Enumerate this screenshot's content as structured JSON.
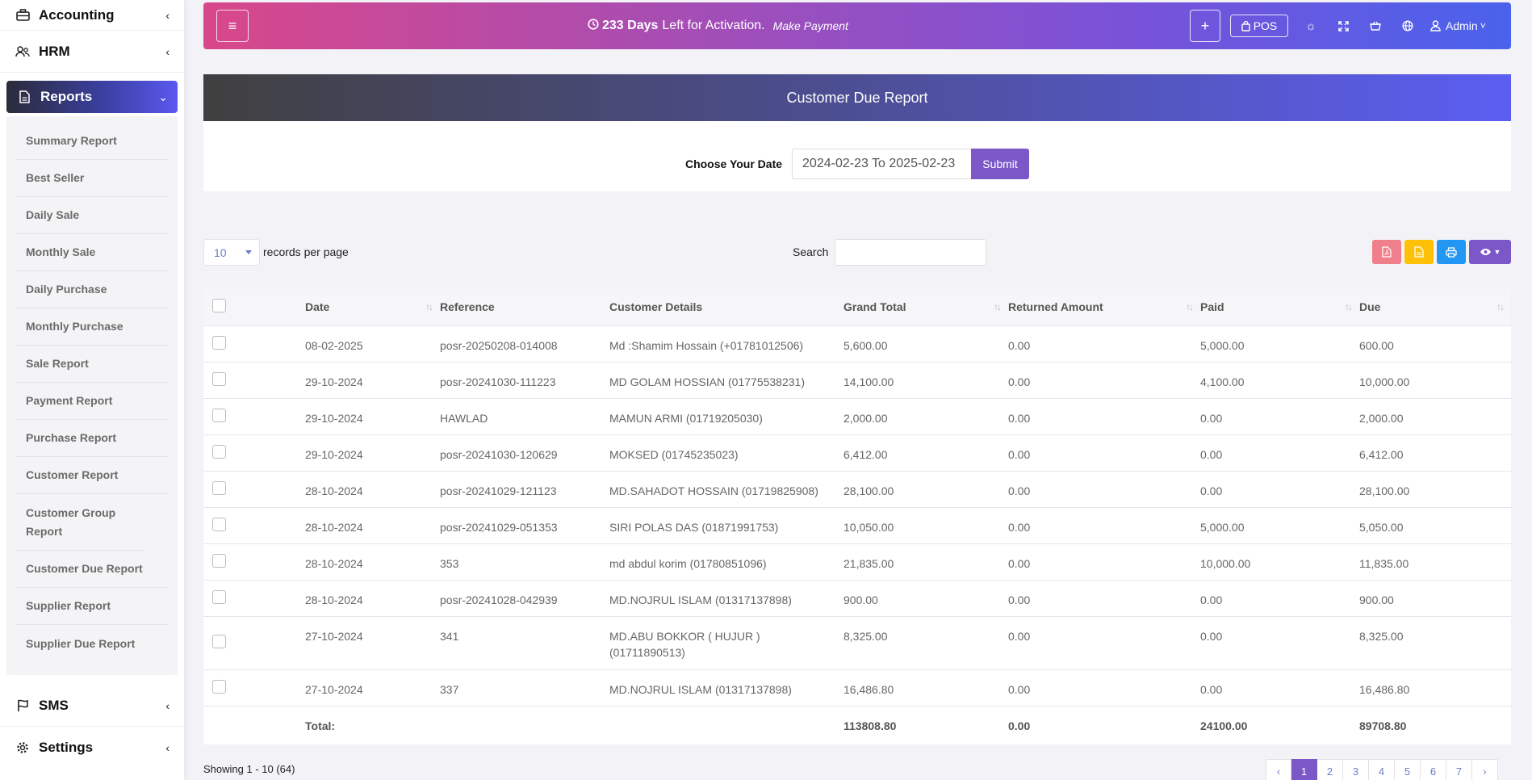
{
  "sidebar": {
    "accounting": "Accounting",
    "hrm": "HRM",
    "reports": "Reports",
    "sms": "SMS",
    "settings": "Settings",
    "report_items": [
      "Summary Report",
      "Best Seller",
      "Daily Sale",
      "Monthly Sale",
      "Daily Purchase",
      "Monthly Purchase",
      "Sale Report",
      "Payment Report",
      "Purchase Report",
      "Customer Report",
      "Customer Group Report",
      "Customer Due Report",
      "Supplier Report",
      "Supplier Due Report"
    ]
  },
  "topbar": {
    "days": "233 Days",
    "activation_text": "Left for Activation.",
    "payment_link": "Make Payment",
    "pos_label": "POS",
    "plus_label": "+",
    "admin_label": "Admin"
  },
  "report": {
    "title": "Customer Due Report",
    "date_label": "Choose Your Date",
    "date_value": "2024-02-23 To 2025-02-23",
    "submit_label": "Submit"
  },
  "controls": {
    "per_page_value": "10",
    "per_page_label": "records per page",
    "search_label": "Search",
    "search_value": ""
  },
  "table": {
    "headers": [
      "Date",
      "Reference",
      "Customer Details",
      "Grand Total",
      "Returned Amount",
      "Paid",
      "Due"
    ],
    "rows": [
      {
        "date": "08-02-2025",
        "reference": "posr-20250208-014008",
        "customer": "Md :Shamim Hossain (+01781012506)",
        "grand_total": "5,600.00",
        "returned": "0.00",
        "paid": "5,000.00",
        "due": "600.00"
      },
      {
        "date": "29-10-2024",
        "reference": "posr-20241030-111223",
        "customer": "MD GOLAM HOSSIAN (01775538231)",
        "grand_total": "14,100.00",
        "returned": "0.00",
        "paid": "4,100.00",
        "due": "10,000.00"
      },
      {
        "date": "29-10-2024",
        "reference": "HAWLAD",
        "customer": "MAMUN ARMI (01719205030)",
        "grand_total": "2,000.00",
        "returned": "0.00",
        "paid": "0.00",
        "due": "2,000.00"
      },
      {
        "date": "29-10-2024",
        "reference": "posr-20241030-120629",
        "customer": "MOKSED (01745235023)",
        "grand_total": "6,412.00",
        "returned": "0.00",
        "paid": "0.00",
        "due": "6,412.00"
      },
      {
        "date": "28-10-2024",
        "reference": "posr-20241029-121123",
        "customer": "MD.SAHADOT HOSSAIN (01719825908)",
        "grand_total": "28,100.00",
        "returned": "0.00",
        "paid": "0.00",
        "due": "28,100.00"
      },
      {
        "date": "28-10-2024",
        "reference": "posr-20241029-051353",
        "customer": "SIRI POLAS DAS (01871991753)",
        "grand_total": "10,050.00",
        "returned": "0.00",
        "paid": "5,000.00",
        "due": "5,050.00"
      },
      {
        "date": "28-10-2024",
        "reference": "353",
        "customer": "md abdul korim (01780851096)",
        "grand_total": "21,835.00",
        "returned": "0.00",
        "paid": "10,000.00",
        "due": "11,835.00"
      },
      {
        "date": "28-10-2024",
        "reference": "posr-20241028-042939",
        "customer": "MD.NOJRUL ISLAM (01317137898)",
        "grand_total": "900.00",
        "returned": "0.00",
        "paid": "0.00",
        "due": "900.00"
      },
      {
        "date": "27-10-2024",
        "reference": "341",
        "customer": "MD.ABU BOKKOR ( HUJUR ) (01711890513)",
        "grand_total": "8,325.00",
        "returned": "0.00",
        "paid": "0.00",
        "due": "8,325.00"
      },
      {
        "date": "27-10-2024",
        "reference": "337",
        "customer": "MD.NOJRUL ISLAM (01317137898)",
        "grand_total": "16,486.80",
        "returned": "0.00",
        "paid": "0.00",
        "due": "16,486.80"
      }
    ],
    "totals": {
      "label": "Total:",
      "grand_total": "113808.80",
      "returned": "0.00",
      "paid": "24100.00",
      "due": "89708.80"
    }
  },
  "footer": {
    "showing": "Showing 1 - 10 (64)",
    "pages": [
      "‹",
      "1",
      "2",
      "3",
      "4",
      "5",
      "6",
      "7",
      "›"
    ],
    "active_page": "1"
  },
  "colors": {
    "accent": "#7b57c8",
    "pdf": "#f07f8c",
    "csv": "#ffc107",
    "print": "#2196f3",
    "visibility": "#7b57c8"
  },
  "icons": [
    "briefcase-icon",
    "users-icon",
    "file-icon",
    "flag-icon",
    "gear-icon",
    "clock-icon",
    "bag-icon",
    "sun-icon",
    "expand-icon",
    "basket-icon",
    "globe-icon",
    "user-icon",
    "file-pdf-icon",
    "file-csv-icon",
    "print-icon",
    "eye-icon"
  ]
}
